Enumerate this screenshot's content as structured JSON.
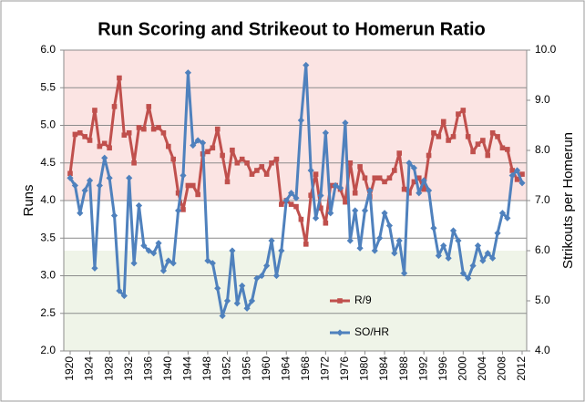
{
  "chart_data": {
    "type": "line",
    "title": "Run Scoring and Strikeout to Homerun Ratio",
    "ylabel": "Runs",
    "y2label": "Strikouts per Homerun",
    "x": [
      1920,
      1921,
      1922,
      1923,
      1924,
      1925,
      1926,
      1927,
      1928,
      1929,
      1930,
      1931,
      1932,
      1933,
      1934,
      1935,
      1936,
      1937,
      1938,
      1939,
      1940,
      1941,
      1942,
      1943,
      1944,
      1945,
      1946,
      1947,
      1948,
      1949,
      1950,
      1951,
      1952,
      1953,
      1954,
      1955,
      1956,
      1957,
      1958,
      1959,
      1960,
      1961,
      1962,
      1963,
      1964,
      1965,
      1966,
      1967,
      1968,
      1969,
      1970,
      1971,
      1972,
      1973,
      1974,
      1975,
      1976,
      1977,
      1978,
      1979,
      1980,
      1981,
      1982,
      1983,
      1984,
      1985,
      1986,
      1987,
      1988,
      1989,
      1990,
      1991,
      1992,
      1993,
      1994,
      1995,
      1996,
      1997,
      1998,
      1999,
      2000,
      2001,
      2002,
      2003,
      2004,
      2005,
      2006,
      2007,
      2008,
      2009,
      2010,
      2011,
      2012
    ],
    "xlim": [
      1920,
      2012
    ],
    "xticks": [
      1920,
      1924,
      1928,
      1932,
      1936,
      1940,
      1944,
      1948,
      1952,
      1956,
      1960,
      1964,
      1968,
      1972,
      1976,
      1980,
      1984,
      1988,
      1992,
      1996,
      2000,
      2004,
      2008,
      2012
    ],
    "ylim": [
      2,
      6
    ],
    "yticks": [
      {
        "value": 2,
        "label": "2.0"
      },
      2.5,
      {
        "value": 3,
        "label": "3.0"
      },
      3.5,
      {
        "value": 4,
        "label": "4.0"
      },
      4.5,
      {
        "value": 5,
        "label": "5.0"
      },
      5.5,
      {
        "value": 6,
        "label": "6.0"
      }
    ],
    "y2lim": [
      4,
      10
    ],
    "y2ticks": [
      {
        "value": 4,
        "label": "4.0"
      },
      {
        "value": 5,
        "label": "5.0"
      },
      {
        "value": 6,
        "label": "6.0"
      },
      {
        "value": 7,
        "label": "7.0"
      },
      {
        "value": 8,
        "label": "8.0"
      },
      {
        "value": 9,
        "label": "9.0"
      },
      {
        "value": 10,
        "label": "10.0"
      }
    ],
    "grid": true,
    "bands": [
      {
        "axis": "y",
        "from": 4,
        "to": 6,
        "color": "#fbe4e3"
      },
      {
        "axis": "y2",
        "from": 4,
        "to": 6,
        "color": "#eff4e8"
      }
    ],
    "series": [
      {
        "name": "R/9",
        "color": "#c0504d",
        "marker": "square",
        "values": [
          4.36,
          4.88,
          4.9,
          4.85,
          4.8,
          5.2,
          4.72,
          4.76,
          4.7,
          5.25,
          5.63,
          4.87,
          4.9,
          4.5,
          4.97,
          4.95,
          5.25,
          4.95,
          4.97,
          4.9,
          4.72,
          4.55,
          4.1,
          3.88,
          4.2,
          4.2,
          4.08,
          4.62,
          4.65,
          4.7,
          4.95,
          4.6,
          4.25,
          4.67,
          4.5,
          4.55,
          4.5,
          4.35,
          4.4,
          4.45,
          4.35,
          4.5,
          4.55,
          3.95,
          4.0,
          3.95,
          3.92,
          3.75,
          3.42,
          4.07,
          4.35,
          3.9,
          3.7,
          4.2,
          4.2,
          4.15,
          3.98,
          4.5,
          4.1,
          4.45,
          4.3,
          4.05,
          4.3,
          4.3,
          4.25,
          4.3,
          4.4,
          4.63,
          4.15,
          4.1,
          4.25,
          4.3,
          4.15,
          4.6,
          4.9,
          4.85,
          5.05,
          4.8,
          4.85,
          5.15,
          5.2,
          4.85,
          4.65,
          4.75,
          4.8,
          4.6,
          4.9,
          4.85,
          4.7,
          4.68,
          4.4,
          4.28,
          4.35
        ]
      },
      {
        "name": "SO/HR",
        "color": "#4f81bd",
        "marker": "diamond",
        "axis": "y2",
        "values": [
          7.45,
          7.3,
          6.75,
          7.2,
          7.4,
          5.65,
          7.3,
          7.85,
          7.45,
          6.7,
          5.2,
          5.1,
          7.45,
          5.75,
          6.9,
          6.1,
          6.0,
          5.95,
          6.15,
          5.6,
          5.8,
          5.75,
          6.8,
          7.5,
          9.55,
          8.1,
          8.2,
          8.15,
          5.8,
          5.75,
          5.25,
          4.7,
          5.0,
          6.0,
          4.95,
          5.3,
          4.85,
          5.0,
          5.45,
          5.5,
          5.7,
          6.2,
          5.5,
          6.0,
          7.0,
          7.15,
          7.05,
          8.6,
          9.7,
          7.6,
          6.65,
          7.1,
          8.35,
          6.75,
          7.3,
          7.25,
          8.55,
          6.2,
          6.8,
          6.05,
          6.8,
          7.2,
          6.0,
          6.25,
          6.75,
          6.5,
          5.95,
          6.2,
          5.55,
          7.75,
          7.65,
          7.15,
          7.4,
          7.2,
          6.45,
          5.9,
          6.1,
          5.85,
          6.4,
          6.2,
          5.55,
          5.45,
          5.7,
          6.1,
          5.8,
          5.95,
          5.85,
          6.35,
          6.75,
          6.65,
          7.5,
          7.6,
          7.35
        ]
      }
    ]
  }
}
